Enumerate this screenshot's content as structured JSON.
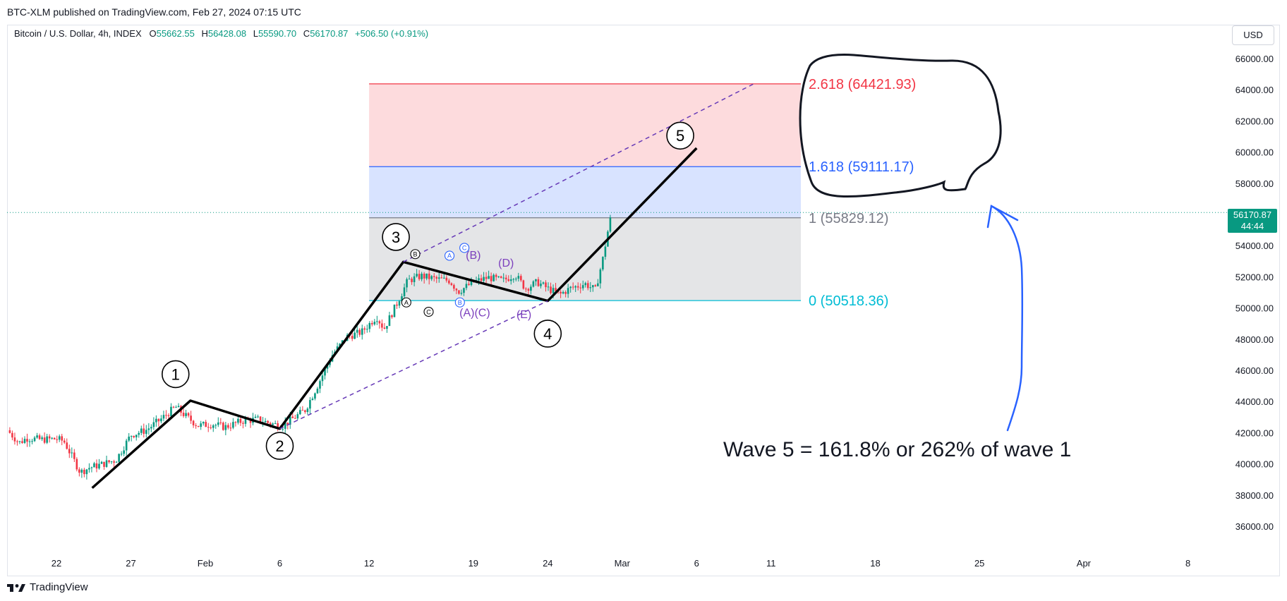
{
  "header": {
    "published": "BTC-XLM published on TradingView.com, Feb 27, 2024 07:15 UTC"
  },
  "legend": {
    "symbol": "Bitcoin / U.S. Dollar, 4h, INDEX",
    "o_label": "O",
    "o_value": "55662.55",
    "h_label": "H",
    "h_value": "56428.08",
    "l_label": "L",
    "l_value": "55590.70",
    "c_label": "C",
    "c_value": "56170.87",
    "change": "+506.50 (+0.91%)"
  },
  "currency_button": "USD",
  "last_price": {
    "value": "56170.87",
    "countdown": "44:44"
  },
  "footer": {
    "brand": "TradingView"
  },
  "colors": {
    "up": "#089981",
    "down": "#f23645",
    "fib_red": "#f23645",
    "fib_blue": "#2962ff",
    "fib_gray": "#787b86",
    "fib_cyan": "#00bcd4",
    "purple": "#7b3fbd",
    "hand_blue": "#2962ff"
  },
  "annotations": {
    "note": "Wave 5 = 161.8% or 262% of wave 1",
    "wave1": "1",
    "wave2": "2",
    "wave3": "3",
    "wave4": "4",
    "wave5": "5",
    "sub_A_black": "A",
    "sub_B_black": "B",
    "sub_C_black": "C",
    "sub_A_blue": "A",
    "sub_B_blue": "B",
    "sub_C_blue": "C",
    "paren_B": "(B)",
    "paren_D": "(D)",
    "paren_AC": "(A)(C)",
    "paren_E": "(E)"
  },
  "chart_data": {
    "type": "candlestick",
    "title": "Bitcoin / U.S. Dollar, 4h, INDEX",
    "interval": "4h",
    "ylim": [
      34500,
      67500
    ],
    "y_ticks": [
      "36000.00",
      "38000.00",
      "40000.00",
      "42000.00",
      "44000.00",
      "46000.00",
      "48000.00",
      "50000.00",
      "52000.00",
      "54000.00",
      "56000.00",
      "58000.00",
      "60000.00",
      "62000.00",
      "64000.00",
      "66000.00"
    ],
    "x_ticks": [
      {
        "label": "22",
        "day": 0
      },
      {
        "label": "27",
        "day": 5
      },
      {
        "label": "Feb",
        "day": 10
      },
      {
        "label": "6",
        "day": 15
      },
      {
        "label": "12",
        "day": 21
      },
      {
        "label": "19",
        "day": 28
      },
      {
        "label": "24",
        "day": 33
      },
      {
        "label": "Mar",
        "day": 38
      },
      {
        "label": "6",
        "day": 43
      },
      {
        "label": "11",
        "day": 48
      },
      {
        "label": "18",
        "day": 55
      },
      {
        "label": "25",
        "day": 62
      },
      {
        "label": "Apr",
        "day": 69
      },
      {
        "label": "8",
        "day": 76
      }
    ],
    "price_path": [
      {
        "day": -3.3,
        "price": 42200
      },
      {
        "day": -2.5,
        "price": 41400
      },
      {
        "day": -2,
        "price": 41700
      },
      {
        "day": -1,
        "price": 41600
      },
      {
        "day": 0,
        "price": 41650
      },
      {
        "day": 0.5,
        "price": 41500
      },
      {
        "day": 1,
        "price": 40600
      },
      {
        "day": 1.6,
        "price": 39500
      },
      {
        "day": 2.2,
        "price": 39800
      },
      {
        "day": 3,
        "price": 40000
      },
      {
        "day": 4,
        "price": 40300
      },
      {
        "day": 5,
        "price": 41900
      },
      {
        "day": 6,
        "price": 42200
      },
      {
        "day": 7,
        "price": 42900
      },
      {
        "day": 8,
        "price": 43700
      },
      {
        "day": 8.7,
        "price": 43100
      },
      {
        "day": 9.5,
        "price": 42500
      },
      {
        "day": 10.5,
        "price": 42600
      },
      {
        "day": 11.3,
        "price": 42400
      },
      {
        "day": 12.5,
        "price": 42800
      },
      {
        "day": 13.5,
        "price": 42900
      },
      {
        "day": 14.5,
        "price": 42600
      },
      {
        "day": 15.2,
        "price": 42500
      },
      {
        "day": 15.8,
        "price": 42900
      },
      {
        "day": 16.7,
        "price": 43500
      },
      {
        "day": 17.5,
        "price": 45000
      },
      {
        "day": 18.5,
        "price": 47000
      },
      {
        "day": 19.5,
        "price": 48200
      },
      {
        "day": 20.5,
        "price": 48500
      },
      {
        "day": 21.5,
        "price": 49500
      },
      {
        "day": 22,
        "price": 48700
      },
      {
        "day": 22.8,
        "price": 50200
      },
      {
        "day": 23.6,
        "price": 51800
      },
      {
        "day": 24.5,
        "price": 52100
      },
      {
        "day": 25.5,
        "price": 51900
      },
      {
        "day": 26.4,
        "price": 51800
      },
      {
        "day": 27,
        "price": 51100
      },
      {
        "day": 28,
        "price": 51700
      },
      {
        "day": 29,
        "price": 52000
      },
      {
        "day": 30,
        "price": 51800
      },
      {
        "day": 30.8,
        "price": 52200
      },
      {
        "day": 31.5,
        "price": 51300
      },
      {
        "day": 32.3,
        "price": 51700
      },
      {
        "day": 33,
        "price": 51300
      },
      {
        "day": 33.8,
        "price": 50900
      },
      {
        "day": 34.5,
        "price": 51300
      },
      {
        "day": 35.5,
        "price": 51600
      },
      {
        "day": 36.2,
        "price": 51200
      },
      {
        "day": 36.7,
        "price": 53200
      },
      {
        "day": 37.0,
        "price": 54800
      },
      {
        "day": 37.3,
        "price": 56170.87
      }
    ],
    "last_price": 56170.87,
    "fib_extension": {
      "x_start_day": 21,
      "x_end_day": 50,
      "levels": [
        {
          "ratio": "2.618",
          "price": 64421.93,
          "label": "2.618 (64421.93)"
        },
        {
          "ratio": "1.618",
          "price": 59111.17,
          "label": "1.618 (59111.17)"
        },
        {
          "ratio": "1",
          "price": 55829.12,
          "label": "1 (55829.12)"
        },
        {
          "ratio": "0",
          "price": 50518.36,
          "label": "0 (50518.36)"
        }
      ]
    },
    "wave_lines": [
      {
        "day": 2.4,
        "price": 38500
      },
      {
        "day": 9,
        "price": 44100
      },
      {
        "day": 15,
        "price": 42300
      },
      {
        "day": 23.3,
        "price": 53000
      },
      {
        "day": 33,
        "price": 50500
      },
      {
        "day": 43,
        "price": 60300
      }
    ],
    "channel_lines": [
      {
        "from": {
          "day": 15,
          "price": 42300
        },
        "to": {
          "day": 33,
          "price": 50500
        }
      },
      {
        "from": {
          "day": 23.3,
          "price": 53000
        },
        "to": {
          "day": 47,
          "price": 64500
        }
      }
    ]
  }
}
